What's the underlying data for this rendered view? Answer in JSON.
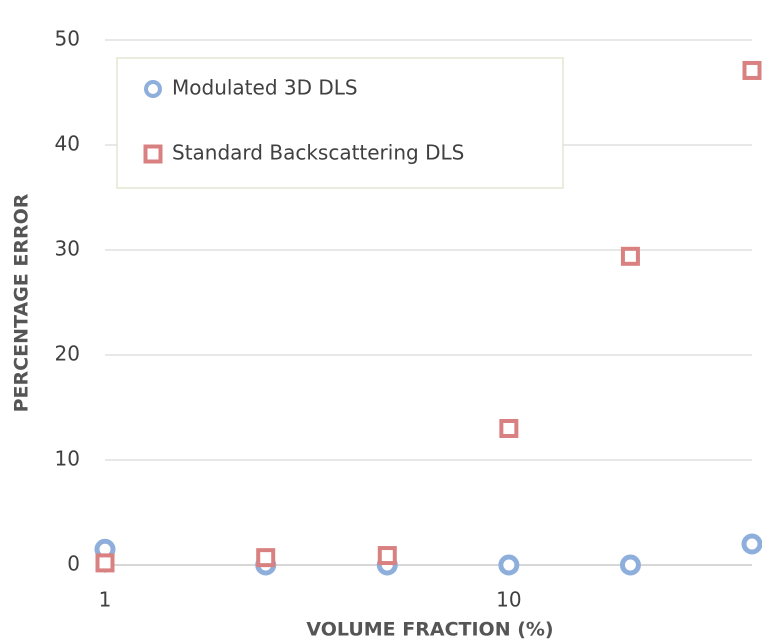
{
  "chart_data": {
    "type": "scatter",
    "x": [
      1,
      2.5,
      5,
      10,
      20,
      40
    ],
    "series": [
      {
        "name": "Modulated 3D DLS",
        "color": "#8eaedb",
        "marker": "circle",
        "values": [
          1.5,
          0,
          0,
          0,
          0,
          2.0
        ]
      },
      {
        "name": "Standard Backscattering DLS",
        "color": "#d98080",
        "marker": "square",
        "values": [
          0.2,
          0.7,
          0.9,
          13,
          29.4,
          47.1
        ]
      }
    ],
    "xlabel": "VOLUME FRACTION (%)",
    "ylabel": "PERCENTAGE ERROR",
    "xlim": [
      1,
      40
    ],
    "xticks": [
      1,
      10
    ],
    "xscale": "log",
    "ylim": [
      0,
      50
    ],
    "yticks": [
      0,
      10,
      20,
      30,
      40,
      50
    ],
    "grid": true,
    "legend": "upper left"
  }
}
